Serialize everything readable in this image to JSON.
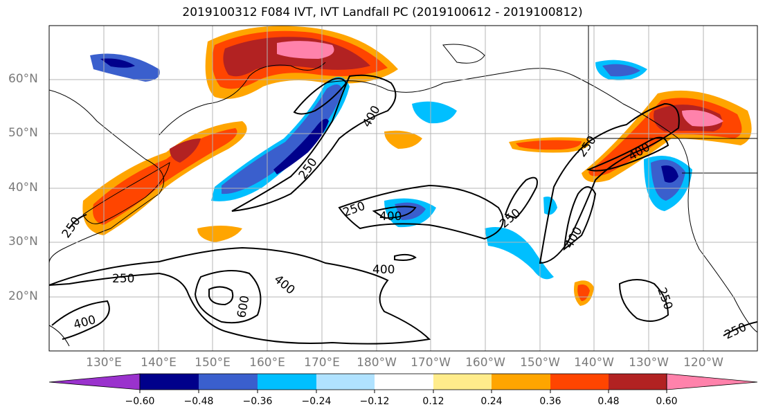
{
  "title": "2019100312 F084 IVT, IVT Landfall PC (2019100612 - 2019100812)",
  "lat_labels": [
    "60°N",
    "50°N",
    "40°N",
    "30°N",
    "20°N"
  ],
  "lon_labels": [
    "130°E",
    "140°E",
    "150°E",
    "160°E",
    "170°E",
    "180°W",
    "170°W",
    "160°W",
    "150°W",
    "140°W",
    "130°W",
    "120°W"
  ],
  "colorbar": {
    "tick_labels": [
      "−0.60",
      "−0.48",
      "−0.36",
      "−0.24",
      "−0.12",
      "0.12",
      "0.24",
      "0.36",
      "0.48",
      "0.60"
    ],
    "colors": [
      "#9a32cd",
      "#00008b",
      "#3a5fcd",
      "#00bfff",
      "#b0e2ff",
      "#ffffff",
      "#ffec8b",
      "#ffa500",
      "#ff4500",
      "#b22222",
      "#ff82ab"
    ]
  },
  "contour_labels": [
    "250",
    "400",
    "600",
    "250",
    "400",
    "250",
    "250",
    "400",
    "400",
    "250",
    "400",
    "250",
    "400",
    "400",
    "250",
    "250",
    "250"
  ]
}
